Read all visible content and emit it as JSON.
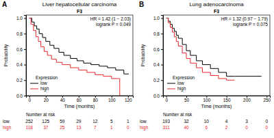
{
  "chart_data": [
    {
      "type": "line",
      "panel": "A",
      "title": "Liver hepatocellular carcinoma",
      "subtitle": "F3",
      "annotations": [
        "HR = 1.42 (1 − 2.03)",
        "logrank P = 0.049"
      ],
      "x_label": "Time (months)",
      "y_label": "Probability",
      "legend": "bottomleft",
      "legend_title": "Expression",
      "risk_table_title": "Number at risk",
      "xlim": [
        -4,
        126
      ],
      "xticks": [
        0,
        20,
        40,
        60,
        80,
        100,
        120
      ],
      "ylim": [
        0,
        1.04
      ],
      "yticks": [
        {
          "value": 0,
          "label": "0.0"
        },
        {
          "value": 0.2,
          "label": "0.2"
        },
        {
          "value": 0.4,
          "label": "0.4"
        },
        {
          "value": 0.6,
          "label": "0.6"
        },
        {
          "value": 0.8,
          "label": "0.8"
        },
        {
          "value": 1,
          "label": "1.0"
        }
      ],
      "series": [
        {
          "name": "low",
          "color": "#000000",
          "line_style": "step",
          "x": [
            0,
            3,
            6,
            9,
            12,
            16,
            20,
            25,
            30,
            36,
            42,
            50,
            58,
            66,
            75,
            85,
            95,
            105,
            115,
            121
          ],
          "values": [
            1,
            0.95,
            0.9,
            0.86,
            0.8,
            0.75,
            0.7,
            0.65,
            0.61,
            0.56,
            0.52,
            0.48,
            0.45,
            0.42,
            0.4,
            0.38,
            0.36,
            0.33,
            0.28,
            0.28
          ],
          "at_risk": [
            252,
            125,
            59,
            29,
            12,
            5,
            1
          ]
        },
        {
          "name": "high",
          "color": "#e8282e",
          "line_style": "step",
          "x": [
            0,
            2,
            5,
            8,
            11,
            14,
            18,
            22,
            27,
            33,
            40,
            50,
            60,
            70,
            80,
            90,
            100,
            108,
            110
          ],
          "values": [
            1,
            0.92,
            0.84,
            0.76,
            0.7,
            0.63,
            0.57,
            0.52,
            0.47,
            0.43,
            0.4,
            0.36,
            0.33,
            0.3,
            0.27,
            0.25,
            0.22,
            0.22,
            0
          ],
          "at_risk": [
            118,
            37,
            25,
            13,
            7,
            1,
            0
          ]
        }
      ]
    },
    {
      "type": "line",
      "panel": "B",
      "title": "Lung adenocarcinoma",
      "subtitle": "F3",
      "annotations": [
        "HR = 1.32 (0.97 − 1.79)",
        "logrank P = 0.075"
      ],
      "x_label": "Time (months)",
      "y_label": "Probability",
      "legend": "bottomleft",
      "legend_title": "Expression",
      "risk_table_title": "Number at risk",
      "xlim": [
        -8,
        258
      ],
      "xticks": [
        0,
        50,
        100,
        150,
        200,
        250
      ],
      "ylim": [
        0,
        1.04
      ],
      "yticks": [
        {
          "value": 0,
          "label": "0.0"
        },
        {
          "value": 0.2,
          "label": "0.2"
        },
        {
          "value": 0.4,
          "label": "0.4"
        },
        {
          "value": 0.6,
          "label": "0.6"
        },
        {
          "value": 0.8,
          "label": "0.8"
        },
        {
          "value": 1,
          "label": "1.0"
        }
      ],
      "series": [
        {
          "name": "low",
          "color": "#000000",
          "line_style": "step",
          "x": [
            0,
            5,
            10,
            15,
            20,
            25,
            30,
            40,
            50,
            60,
            75,
            90,
            110,
            130,
            150,
            170,
            200,
            237
          ],
          "values": [
            1,
            0.96,
            0.92,
            0.87,
            0.83,
            0.78,
            0.74,
            0.66,
            0.58,
            0.52,
            0.45,
            0.4,
            0.35,
            0.3,
            0.25,
            0.25,
            0.25,
            0.25
          ],
          "at_risk": [
            193,
            32,
            10,
            4,
            3,
            0
          ]
        },
        {
          "name": "high",
          "color": "#e8282e",
          "line_style": "step",
          "x": [
            0,
            5,
            10,
            15,
            20,
            25,
            30,
            40,
            50,
            60,
            75,
            90,
            110,
            130,
            150,
            170
          ],
          "values": [
            1,
            0.94,
            0.88,
            0.82,
            0.76,
            0.7,
            0.64,
            0.55,
            0.48,
            0.42,
            0.36,
            0.3,
            0.26,
            0.22,
            0.2,
            0.2
          ],
          "at_risk": [
            311,
            40,
            6,
            2,
            0,
            0
          ]
        }
      ]
    }
  ]
}
